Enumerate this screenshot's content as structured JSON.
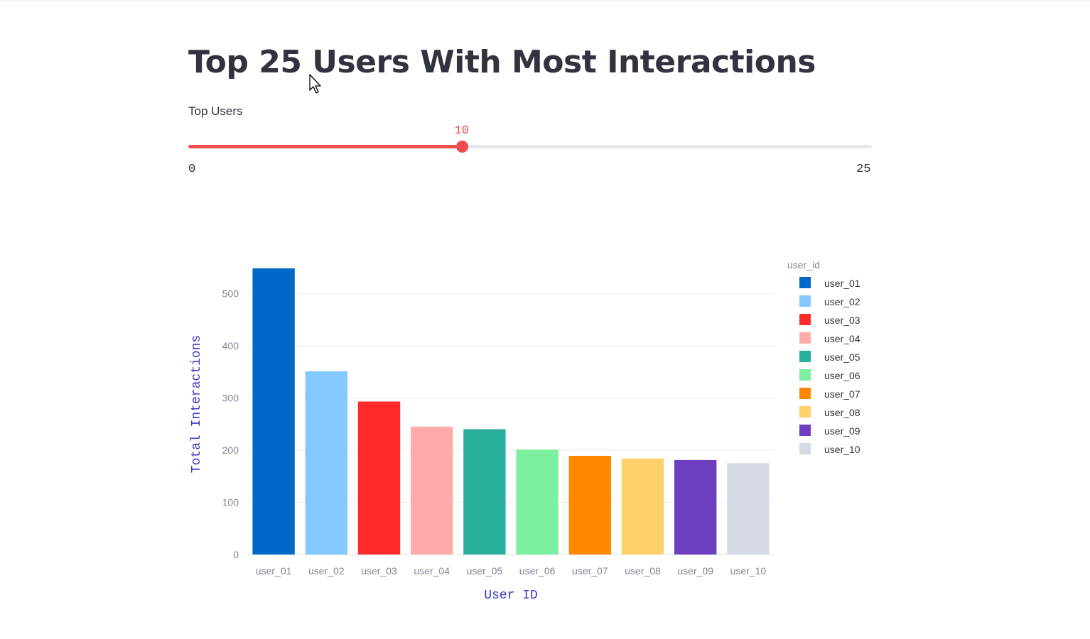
{
  "page": {
    "title": "Top 25 Users With Most Interactions"
  },
  "slider": {
    "label": "Top Users",
    "value": 10,
    "min": 0,
    "max": 25,
    "accent_color": "#ef4c4f"
  },
  "chart_data": {
    "type": "bar",
    "title": "",
    "xlabel": "User ID",
    "ylabel": "Total Interactions",
    "legend_title": "user_id",
    "legend_position": "right",
    "categories": [
      "user_01",
      "user_02",
      "user_03",
      "user_04",
      "user_05",
      "user_06",
      "user_07",
      "user_08",
      "user_09",
      "user_10"
    ],
    "values": [
      548,
      351,
      293,
      245,
      240,
      201,
      189,
      184,
      181,
      175
    ],
    "colors": [
      "#0068c9",
      "#83c9ff",
      "#ff2b2b",
      "#ffabab",
      "#29b09d",
      "#7defa1",
      "#ff8700",
      "#ffd16a",
      "#6d3fc0",
      "#d5dae5"
    ],
    "yticks": [
      0,
      100,
      200,
      300,
      400,
      500
    ],
    "ylim": [
      0,
      548
    ],
    "grid": true
  }
}
